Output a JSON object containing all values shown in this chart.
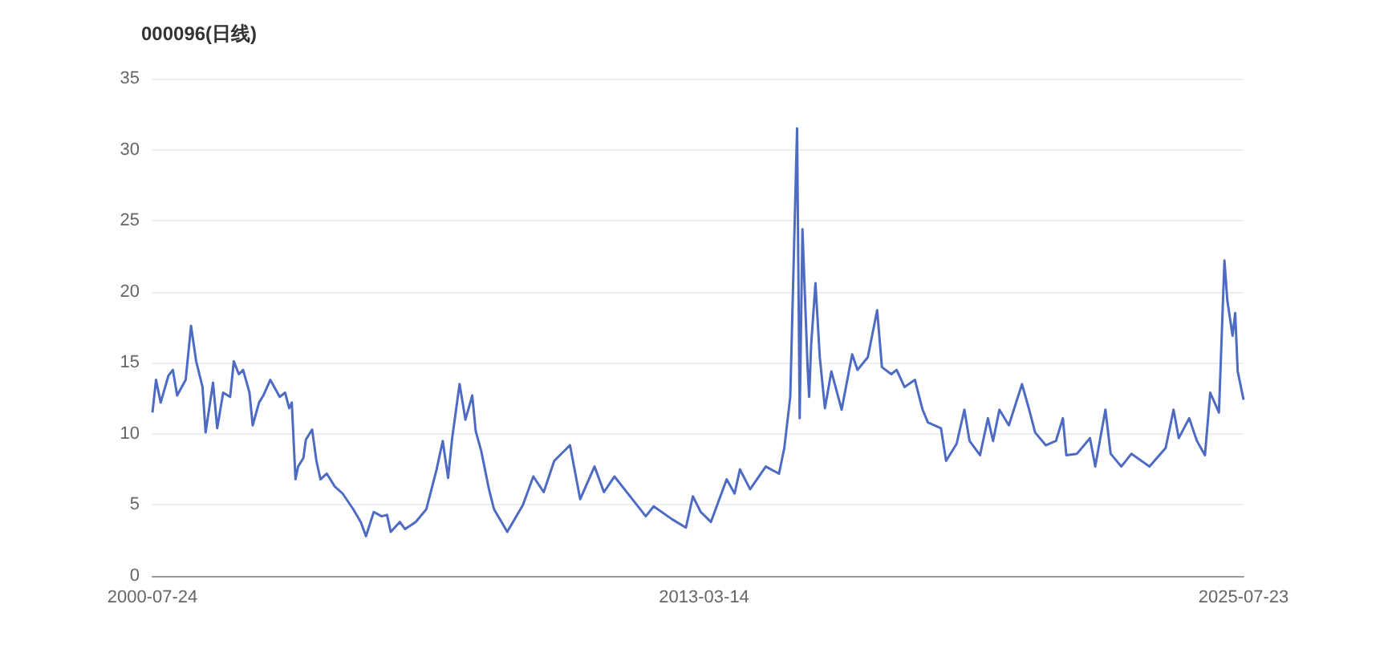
{
  "chart_data": {
    "type": "line",
    "title": "000096(日线)",
    "x": [
      "2000-07-24",
      "2000-08-23",
      "2000-10-01",
      "2000-12-05",
      "2001-01-11",
      "2001-02-16",
      "2001-04-28",
      "2001-06-12",
      "2001-07-25",
      "2001-09-16",
      "2001-10-12",
      "2001-12-13",
      "2002-01-17",
      "2002-03-08",
      "2002-05-05",
      "2002-06-05",
      "2002-07-17",
      "2002-08-22",
      "2002-10-14",
      "2002-11-10",
      "2003-01-02",
      "2003-02-07",
      "2003-04-06",
      "2003-06-24",
      "2003-08-08",
      "2003-09-11",
      "2003-10-03",
      "2003-11-03",
      "2003-11-25",
      "2004-01-08",
      "2004-01-29",
      "2004-03-21",
      "2004-04-26",
      "2004-05-30",
      "2004-07-22",
      "2004-09-26",
      "2004-12-01",
      "2005-02-28",
      "2005-05-02",
      "2005-06-15",
      "2005-08-19",
      "2005-10-24",
      "2005-12-08",
      "2006-01-08",
      "2006-03-25",
      "2006-05-08",
      "2006-08-05",
      "2006-11-02",
      "2007-01-27",
      "2007-03-19",
      "2007-05-03",
      "2007-06-06",
      "2007-08-07",
      "2007-09-25",
      "2007-11-21",
      "2007-12-20",
      "2008-02-04",
      "2008-04-09",
      "2008-05-21",
      "2008-09-09",
      "2009-01-18",
      "2009-04-15",
      "2009-07-11",
      "2009-10-07",
      "2010-02-16",
      "2010-05-12",
      "2010-09-09",
      "2010-11-27",
      "2011-02-23",
      "2011-07-23",
      "2011-11-12",
      "2012-01-17",
      "2012-06-17",
      "2012-10-13",
      "2012-12-10",
      "2013-02-14",
      "2013-05-10",
      "2013-09-19",
      "2013-11-24",
      "2014-01-08",
      "2014-04-03",
      "2014-08-12",
      "2014-12-01",
      "2015-01-14",
      "2015-03-05",
      "2015-05-01",
      "2015-05-23",
      "2015-06-15",
      "2015-07-28",
      "2015-08-10",
      "2015-08-27",
      "2015-10-02",
      "2015-11-07",
      "2015-12-20",
      "2016-02-12",
      "2016-05-08",
      "2016-08-04",
      "2016-09-18",
      "2016-12-13",
      "2017-03-01",
      "2017-04-10",
      "2017-06-27",
      "2017-08-11",
      "2017-10-16",
      "2018-01-11",
      "2018-03-16",
      "2018-04-30",
      "2018-08-17",
      "2018-09-29",
      "2018-12-26",
      "2019-03-01",
      "2019-04-13",
      "2019-07-10",
      "2019-09-14",
      "2019-10-27",
      "2019-12-19",
      "2020-03-07",
      "2020-06-25",
      "2020-08-21",
      "2020-10-13",
      "2021-01-10",
      "2021-04-05",
      "2021-06-02",
      "2021-07-01",
      "2021-09-28",
      "2022-01-15",
      "2022-02-28",
      "2022-05-24",
      "2022-07-07",
      "2022-10-04",
      "2022-12-28",
      "2023-05-28",
      "2023-10-10",
      "2023-12-15",
      "2024-01-28",
      "2024-04-24",
      "2024-06-28",
      "2024-09-03",
      "2024-10-17",
      "2024-12-29",
      "2025-02-13",
      "2025-03-09",
      "2025-04-22",
      "2025-05-14",
      "2025-06-04",
      "2025-07-23"
    ],
    "series": [
      {
        "color": "#4e6bc4",
        "values": [
          11.5,
          13.8,
          12.2,
          14.1,
          14.5,
          12.7,
          13.8,
          17.6,
          15.1,
          13.3,
          10.1,
          13.6,
          10.4,
          12.9,
          12.6,
          15.1,
          14.2,
          14.5,
          12.9,
          10.6,
          12.2,
          12.7,
          13.8,
          12.6,
          12.9,
          11.8,
          12.2,
          6.8,
          7.7,
          8.3,
          9.6,
          10.3,
          8.1,
          6.8,
          7.2,
          6.3,
          5.8,
          4.7,
          3.8,
          2.8,
          4.5,
          4.2,
          4.3,
          3.1,
          3.8,
          3.3,
          3.8,
          4.7,
          7.5,
          9.5,
          6.9,
          9.7,
          13.5,
          11.0,
          12.7,
          10.2,
          8.8,
          6.1,
          4.7,
          3.1,
          5.0,
          7.0,
          5.9,
          8.1,
          9.2,
          5.4,
          7.7,
          5.9,
          7.0,
          5.4,
          4.2,
          4.9,
          4.0,
          3.4,
          5.6,
          4.5,
          3.8,
          6.8,
          5.8,
          7.5,
          6.1,
          7.7,
          7.2,
          9.0,
          12.6,
          31.5,
          11.1,
          24.4,
          14.7,
          12.6,
          16.3,
          20.6,
          15.4,
          11.8,
          14.4,
          11.7,
          15.6,
          14.5,
          15.4,
          18.7,
          14.7,
          14.2,
          14.5,
          13.3,
          13.8,
          11.7,
          10.8,
          10.4,
          8.1,
          9.3,
          11.7,
          9.5,
          8.5,
          11.1,
          9.5,
          11.7,
          10.6,
          13.5,
          11.8,
          10.1,
          9.2,
          9.5,
          11.1,
          8.5,
          8.6,
          9.7,
          7.7,
          11.7,
          8.6,
          7.7,
          8.6,
          7.7,
          9.0,
          11.7,
          9.7,
          11.1,
          9.5,
          8.5,
          12.9,
          11.5,
          22.2,
          19.4,
          16.9,
          18.5,
          14.4,
          12.4
        ]
      }
    ],
    "xlim": [
      "2000-07-24",
      "2025-07-23"
    ],
    "xticks": [
      "2000-07-24",
      "2013-03-14",
      "2025-07-23"
    ],
    "ylim": [
      0,
      35
    ],
    "yticks": [
      0,
      5,
      10,
      15,
      20,
      25,
      30,
      35
    ],
    "grid": "y",
    "marker": "none",
    "line_style": "solid"
  }
}
